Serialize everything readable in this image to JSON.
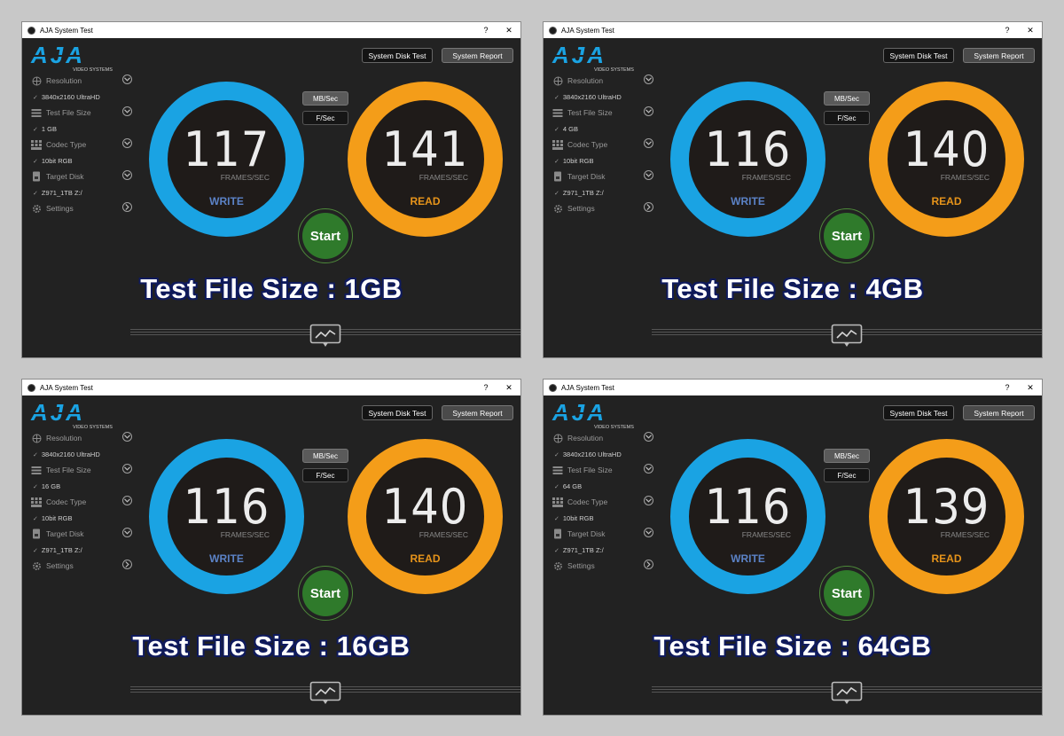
{
  "colors": {
    "write_ring": "#1aa3e3",
    "read_ring": "#f49d19",
    "write_label": "#5b82c6",
    "read_label": "#e7941a",
    "start_button": "#2f7a2b",
    "caption_outline": "#0f1a5c",
    "logo_blue": "#1aa3e3"
  },
  "windows": [
    {
      "title": "AJA System Test",
      "help": "?",
      "close": "✕",
      "logo_text": "AJA",
      "logo_sub": "VIDEO SYSTEMS",
      "buttons": {
        "disk_test": "System Disk Test",
        "report": "System Report",
        "mbsec": "MB/Sec",
        "fsec": "F/Sec",
        "start": "Start"
      },
      "sidebar": {
        "resolution_label": "Resolution",
        "resolution_value": "3840x2160 UltraHD",
        "filesize_label": "Test File Size",
        "filesize_value": "1 GB",
        "codec_label": "Codec Type",
        "codec_value": "10bit RGB",
        "disk_label": "Target Disk",
        "disk_value": "Z971_1TB Z:/",
        "settings_label": "Settings"
      },
      "write": {
        "value": "117",
        "unit": "FRAMES/SEC",
        "label": "WRITE"
      },
      "read": {
        "value": "141",
        "unit": "FRAMES/SEC",
        "label": "READ"
      },
      "caption": "Test File Size : 1GB"
    },
    {
      "title": "AJA System Test",
      "help": "?",
      "close": "✕",
      "logo_text": "AJA",
      "logo_sub": "VIDEO SYSTEMS",
      "buttons": {
        "disk_test": "System Disk Test",
        "report": "System Report",
        "mbsec": "MB/Sec",
        "fsec": "F/Sec",
        "start": "Start"
      },
      "sidebar": {
        "resolution_label": "Resolution",
        "resolution_value": "3840x2160 UltraHD",
        "filesize_label": "Test File Size",
        "filesize_value": "4 GB",
        "codec_label": "Codec Type",
        "codec_value": "10bit RGB",
        "disk_label": "Target Disk",
        "disk_value": "Z971_1TB Z:/",
        "settings_label": "Settings"
      },
      "write": {
        "value": "116",
        "unit": "FRAMES/SEC",
        "label": "WRITE"
      },
      "read": {
        "value": "140",
        "unit": "FRAMES/SEC",
        "label": "READ"
      },
      "caption": "Test File Size : 4GB"
    },
    {
      "title": "AJA System Test",
      "help": "?",
      "close": "✕",
      "logo_text": "AJA",
      "logo_sub": "VIDEO SYSTEMS",
      "buttons": {
        "disk_test": "System Disk Test",
        "report": "System Report",
        "mbsec": "MB/Sec",
        "fsec": "F/Sec",
        "start": "Start"
      },
      "sidebar": {
        "resolution_label": "Resolution",
        "resolution_value": "3840x2160 UltraHD",
        "filesize_label": "Test File Size",
        "filesize_value": "16 GB",
        "codec_label": "Codec Type",
        "codec_value": "10bit RGB",
        "disk_label": "Target Disk",
        "disk_value": "Z971_1TB Z:/",
        "settings_label": "Settings"
      },
      "write": {
        "value": "116",
        "unit": "FRAMES/SEC",
        "label": "WRITE"
      },
      "read": {
        "value": "140",
        "unit": "FRAMES/SEC",
        "label": "READ"
      },
      "caption": "Test File Size : 16GB"
    },
    {
      "title": "AJA System Test",
      "help": "?",
      "close": "✕",
      "logo_text": "AJA",
      "logo_sub": "VIDEO SYSTEMS",
      "buttons": {
        "disk_test": "System Disk Test",
        "report": "System Report",
        "mbsec": "MB/Sec",
        "fsec": "F/Sec",
        "start": "Start"
      },
      "sidebar": {
        "resolution_label": "Resolution",
        "resolution_value": "3840x2160 UltraHD",
        "filesize_label": "Test File Size",
        "filesize_value": "64 GB",
        "codec_label": "Codec Type",
        "codec_value": "10bit RGB",
        "disk_label": "Target Disk",
        "disk_value": "Z971_1TB Z:/",
        "settings_label": "Settings"
      },
      "write": {
        "value": "116",
        "unit": "FRAMES/SEC",
        "label": "WRITE"
      },
      "read": {
        "value": "139",
        "unit": "FRAMES/SEC",
        "label": "READ"
      },
      "caption": "Test File Size : 64GB"
    }
  ]
}
